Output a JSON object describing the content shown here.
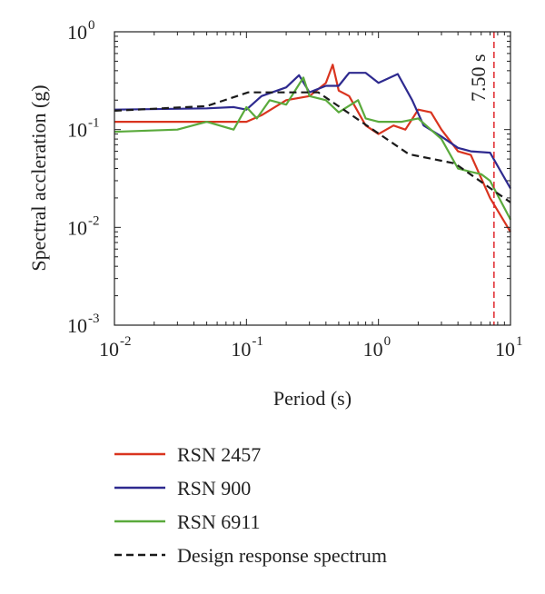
{
  "chart_data": {
    "type": "line",
    "xlabel": "Period (s)",
    "ylabel": "Spectral accleration (g)",
    "xscale": "log",
    "yscale": "log",
    "xlim": [
      0.01,
      10
    ],
    "ylim": [
      0.001,
      1
    ],
    "xticks": [
      {
        "base": "10",
        "exp": "-2"
      },
      {
        "base": "10",
        "exp": "-1"
      },
      {
        "base": "10",
        "exp": "0"
      },
      {
        "base": "10",
        "exp": "1"
      }
    ],
    "yticks": [
      {
        "base": "10",
        "exp": "-3"
      },
      {
        "base": "10",
        "exp": "-2"
      },
      {
        "base": "10",
        "exp": "-1"
      },
      {
        "base": "10",
        "exp": "0"
      }
    ],
    "annotation": {
      "label": "7.50 s",
      "x": 7.5,
      "color": "#e0262b"
    },
    "legend_position": "below",
    "series": [
      {
        "name": "RSN 2457",
        "color": "#d9341f",
        "dash": false,
        "x": [
          0.01,
          0.05,
          0.1,
          0.13,
          0.2,
          0.3,
          0.4,
          0.45,
          0.5,
          0.6,
          0.8,
          1,
          1.3,
          1.6,
          2,
          2.5,
          3,
          4,
          5,
          7,
          10
        ],
        "y": [
          0.12,
          0.12,
          0.12,
          0.14,
          0.2,
          0.22,
          0.3,
          0.46,
          0.25,
          0.22,
          0.11,
          0.09,
          0.11,
          0.1,
          0.16,
          0.15,
          0.1,
          0.06,
          0.055,
          0.02,
          0.009
        ]
      },
      {
        "name": "RSN 900",
        "color": "#2e2a8f",
        "dash": false,
        "x": [
          0.01,
          0.05,
          0.08,
          0.1,
          0.13,
          0.2,
          0.25,
          0.3,
          0.4,
          0.5,
          0.6,
          0.8,
          1,
          1.4,
          1.8,
          2.2,
          3,
          4,
          5,
          7,
          10
        ],
        "y": [
          0.16,
          0.165,
          0.17,
          0.16,
          0.22,
          0.27,
          0.36,
          0.24,
          0.28,
          0.28,
          0.38,
          0.38,
          0.3,
          0.37,
          0.2,
          0.11,
          0.085,
          0.065,
          0.06,
          0.058,
          0.025
        ]
      },
      {
        "name": "RSN 6911",
        "color": "#5aaa3c",
        "dash": false,
        "x": [
          0.01,
          0.03,
          0.05,
          0.08,
          0.1,
          0.12,
          0.15,
          0.2,
          0.27,
          0.3,
          0.4,
          0.5,
          0.7,
          0.8,
          1,
          1.5,
          2,
          3,
          4,
          5,
          6,
          7,
          10
        ],
        "y": [
          0.095,
          0.1,
          0.12,
          0.1,
          0.17,
          0.13,
          0.2,
          0.18,
          0.34,
          0.22,
          0.2,
          0.15,
          0.2,
          0.13,
          0.12,
          0.12,
          0.13,
          0.08,
          0.04,
          0.037,
          0.035,
          0.03,
          0.012
        ]
      },
      {
        "name": "Design response spectrum",
        "color": "#1a1a1a",
        "dash": true,
        "x": [
          0.01,
          0.05,
          0.103,
          0.35,
          1.7,
          3.8,
          10
        ],
        "y": [
          0.156,
          0.174,
          0.24,
          0.24,
          0.056,
          0.045,
          0.018
        ]
      }
    ]
  }
}
